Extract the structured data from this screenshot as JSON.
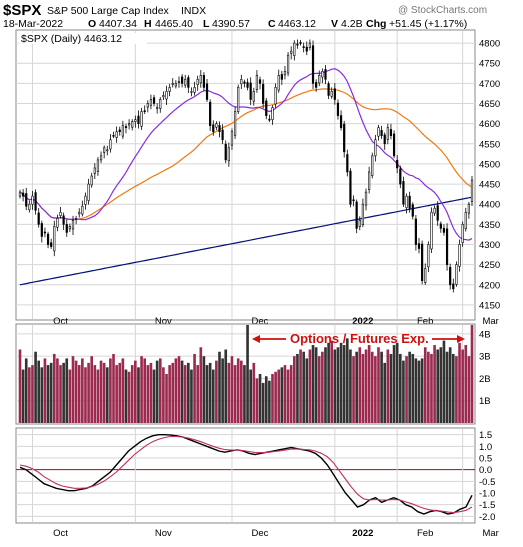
{
  "header": {
    "symbol": "$SPX",
    "name": "S&P 500 Large Cap Index",
    "exchange": "INDX",
    "date": "18-Mar-2022",
    "o_label": "O",
    "o_value": "4407.34",
    "h_label": "H",
    "h_value": "4465.40",
    "l_label": "L",
    "l_value": "4390.57",
    "c_label": "C",
    "c_value": "4463.12",
    "v_label": "V",
    "v_value": "4.2B",
    "chg_label": "Chg",
    "chg_value": "+51.45 (+1.17%)",
    "watermark": "@ StockCharts.com",
    "legend": "$SPX (Daily) 4463.12"
  },
  "annotation": "Options / Futures Exp.",
  "colors": {
    "up_candle": "#ffffff",
    "down_candle": "#000000",
    "ma_purple": "#8a2be2",
    "ma_orange": "#f07a10",
    "ma_navy": "#00107a",
    "volume_up": "#9b2a4e",
    "volume_down": "#333333",
    "annotation_red": "#d01010",
    "macd_line": "#000000",
    "macd_signal": "#c0305a",
    "zero_line": "#c00000",
    "grid": "#d6d6d6"
  },
  "chart_data": [
    {
      "type": "candlestick",
      "title": "$SPX (Daily) 4463.12",
      "x_tick_labels": [
        "Oct",
        "Nov",
        "Dec",
        "2022",
        "Feb",
        "Mar"
      ],
      "y_tick_labels": [
        "4150",
        "4200",
        "4250",
        "4300",
        "4350",
        "4400",
        "4450",
        "4500",
        "4550",
        "4600",
        "4650",
        "4700",
        "4750",
        "4800"
      ],
      "ylim": [
        4115,
        4830
      ],
      "close_series": [
        4430,
        4420,
        4395,
        4400,
        4420,
        4385,
        4350,
        4320,
        4330,
        4300,
        4295,
        4345,
        4365,
        4380,
        4350,
        4330,
        4345,
        4360,
        4365,
        4380,
        4395,
        4420,
        4450,
        4470,
        4490,
        4510,
        4520,
        4540,
        4535,
        4560,
        4570,
        4580,
        4580,
        4595,
        4590,
        4600,
        4605,
        4610,
        4600,
        4630,
        4630,
        4650,
        4660,
        4650,
        4640,
        4660,
        4670,
        4680,
        4690,
        4700,
        4700,
        4705,
        4700,
        4710,
        4690,
        4680,
        4690,
        4710,
        4720,
        4690,
        4660,
        4595,
        4580,
        4600,
        4580,
        4560,
        4510,
        4540,
        4580,
        4630,
        4690,
        4710,
        4700,
        4690,
        4660,
        4680,
        4720,
        4700,
        4650,
        4620,
        4610,
        4640,
        4690,
        4720,
        4710,
        4730,
        4770,
        4780,
        4800,
        4795,
        4800,
        4790,
        4780,
        4800,
        4700,
        4690,
        4720,
        4730,
        4710,
        4670,
        4680,
        4660,
        4620,
        4590,
        4530,
        4480,
        4400,
        4410,
        4340,
        4360,
        4400,
        4430,
        4480,
        4520,
        4560,
        4590,
        4570,
        4550,
        4590,
        4570,
        4520,
        4490,
        4450,
        4400,
        4420,
        4390,
        4370,
        4300,
        4290,
        4210,
        4240,
        4300,
        4380,
        4390,
        4360,
        4340,
        4330,
        4250,
        4200,
        4190,
        4250,
        4300,
        4350,
        4380,
        4400,
        4460
      ],
      "ma_short_label": "purple moving average",
      "ma_mid_label": "orange moving average",
      "ma_long_label": "navy moving average"
    },
    {
      "type": "bar",
      "title": "Volume",
      "y_tick_labels": [
        "1B",
        "2B",
        "3B",
        "4B"
      ],
      "ylim": [
        0,
        4.4
      ],
      "values": [
        3.3,
        2.4,
        2.9,
        2.5,
        2.6,
        3.2,
        2.8,
        2.5,
        2.9,
        2.6,
        2.7,
        3.1,
        2.9,
        2.6,
        2.7,
        2.9,
        2.4,
        3.0,
        2.8,
        2.6,
        2.9,
        2.5,
        2.7,
        3.0,
        2.6,
        2.4,
        2.8,
        2.7,
        2.5,
        2.9,
        3.1,
        2.6,
        2.7,
        2.9,
        2.4,
        2.3,
        2.6,
        2.8,
        2.5,
        3.0,
        2.9,
        2.6,
        2.7,
        2.4,
        2.8,
        2.9,
        2.5,
        2.2,
        2.6,
        2.7,
        2.9,
        3.0,
        2.8,
        2.6,
        2.7,
        2.4,
        3.1,
        2.6,
        3.4,
        3.0,
        2.6,
        2.7,
        2.4,
        2.8,
        3.2,
        2.9,
        3.3,
        2.7,
        3.0,
        2.6,
        2.9,
        2.8,
        2.6,
        4.5,
        2.4,
        2.7,
        2.0,
        2.2,
        1.8,
        2.1,
        1.9,
        2.2,
        2.3,
        2.4,
        2.5,
        2.6,
        2.4,
        2.6,
        3.0,
        3.1,
        3.3,
        3.2,
        2.9,
        3.3,
        3.5,
        3.4,
        3.0,
        3.2,
        3.4,
        3.6,
        3.7,
        3.3,
        3.4,
        3.6,
        3.5,
        3.8,
        3.3,
        3.0,
        3.2,
        3.4,
        3.1,
        3.3,
        3.5,
        3.2,
        3.0,
        3.4,
        3.2,
        2.7,
        3.3,
        3.1,
        3.5,
        3.6,
        3.1,
        2.8,
        3.0,
        3.2,
        3.1,
        2.9,
        2.8,
        2.9,
        3.4,
        3.2,
        3.1,
        3.5,
        3.3,
        3.4,
        3.7,
        3.2,
        3.4,
        3.1,
        3.0,
        3.6,
        3.3,
        3.5,
        3.0,
        4.5
      ],
      "annotation": "Options / Futures Exp."
    },
    {
      "type": "line",
      "title": "MACD",
      "y_tick_labels": [
        "1.5",
        "1.0",
        "0.5",
        "0.0",
        "-0.5",
        "-1.0",
        "-1.5",
        "-2.0"
      ],
      "ylim": [
        -2.2,
        1.7
      ],
      "series": [
        {
          "values": [
            0.1,
            0.0,
            -0.2,
            -0.4,
            -0.6,
            -0.7,
            -0.8,
            -0.85,
            -0.9,
            -0.9,
            -0.85,
            -0.8,
            -0.7,
            -0.5,
            -0.3,
            -0.1,
            0.2,
            0.5,
            0.8,
            1.0,
            1.2,
            1.35,
            1.45,
            1.5,
            1.5,
            1.48,
            1.45,
            1.4,
            1.3,
            1.2,
            1.1,
            1.0,
            0.9,
            0.8,
            0.75,
            0.8,
            0.85,
            0.8,
            0.7,
            0.65,
            0.7,
            0.75,
            0.8,
            0.85,
            0.9,
            0.95,
            0.9,
            0.85,
            0.8,
            0.7,
            0.5,
            0.2,
            -0.2,
            -0.6,
            -1.0,
            -1.3,
            -1.6,
            -1.5,
            -1.3,
            -1.2,
            -1.4,
            -1.3,
            -1.2,
            -1.3,
            -1.5,
            -1.6,
            -1.8,
            -1.9,
            -1.8,
            -1.75,
            -1.8,
            -1.9,
            -1.85,
            -1.7,
            -1.6,
            -1.1
          ]
        },
        {
          "values": [
            0.2,
            0.15,
            0.05,
            -0.1,
            -0.3,
            -0.45,
            -0.6,
            -0.7,
            -0.75,
            -0.8,
            -0.8,
            -0.78,
            -0.72,
            -0.62,
            -0.48,
            -0.3,
            -0.1,
            0.15,
            0.4,
            0.65,
            0.85,
            1.05,
            1.2,
            1.3,
            1.38,
            1.42,
            1.42,
            1.4,
            1.35,
            1.28,
            1.2,
            1.1,
            1.0,
            0.92,
            0.86,
            0.84,
            0.84,
            0.82,
            0.78,
            0.74,
            0.73,
            0.74,
            0.77,
            0.8,
            0.84,
            0.88,
            0.88,
            0.87,
            0.85,
            0.8,
            0.7,
            0.55,
            0.3,
            -0.05,
            -0.4,
            -0.75,
            -1.05,
            -1.25,
            -1.3,
            -1.28,
            -1.3,
            -1.3,
            -1.28,
            -1.3,
            -1.38,
            -1.46,
            -1.56,
            -1.66,
            -1.72,
            -1.76,
            -1.78,
            -1.82,
            -1.84,
            -1.8,
            -1.74,
            -1.6
          ]
        }
      ]
    }
  ]
}
